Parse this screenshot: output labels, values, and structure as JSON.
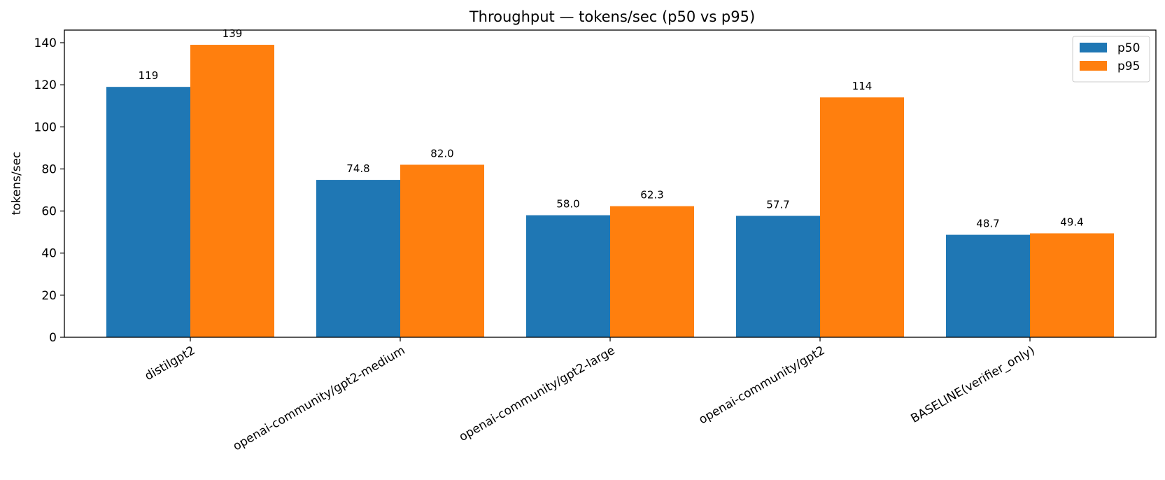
{
  "chart_data": {
    "type": "bar",
    "title": "Throughput — tokens/sec (p50 vs p95)",
    "xlabel": "",
    "ylabel": "tokens/sec",
    "categories": [
      "distilgpt2",
      "openai-community/gpt2-medium",
      "openai-community/gpt2-large",
      "openai-community/gpt2",
      "BASELINE(verifier_only)"
    ],
    "series": [
      {
        "name": "p50",
        "color": "#1f77b4",
        "values": [
          119,
          74.8,
          58.0,
          57.7,
          48.7
        ],
        "labels": [
          "119",
          "74.8",
          "58.0",
          "57.7",
          "48.7"
        ]
      },
      {
        "name": "p95",
        "color": "#ff7f0e",
        "values": [
          139,
          82.0,
          62.3,
          114,
          49.4
        ],
        "labels": [
          "139",
          "82.0",
          "62.3",
          "114",
          "49.4"
        ]
      }
    ],
    "ylim": [
      0,
      146
    ],
    "yticks": [
      0,
      20,
      40,
      60,
      80,
      100,
      120,
      140
    ],
    "grid": false,
    "legend": "upper right",
    "xtick_rotation": -30
  }
}
